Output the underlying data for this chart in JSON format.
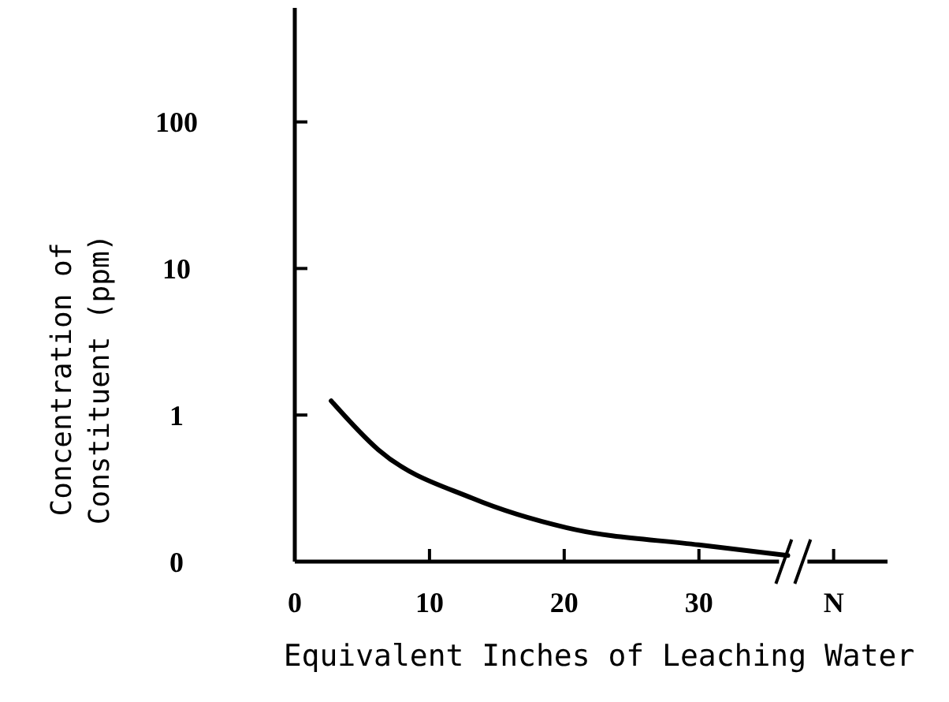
{
  "chart_data": {
    "type": "line",
    "xlabel": "Equivalent Inches of Leaching Water",
    "ylabel": "Concentration of\nConstituent (ppm)",
    "log": "y",
    "xlim": [
      0,
      44
    ],
    "xticks": [
      0,
      10,
      20,
      30,
      {
        "value": 40,
        "label": "N"
      }
    ],
    "ylim": [
      0.1,
      600
    ],
    "yticks": [
      {
        "value": 0.1,
        "label": "0"
      },
      1,
      10,
      100
    ],
    "x": [
      2.7,
      6.2,
      13.2,
      20.2,
      30,
      36.6
    ],
    "series": [
      {
        "color": "#000000",
        "values": [
          1.25,
          0.58,
          0.27,
          0.17,
          0.13,
          0.11
        ]
      }
    ],
    "grid": false,
    "marker": "none",
    "line_style": "solid"
  }
}
